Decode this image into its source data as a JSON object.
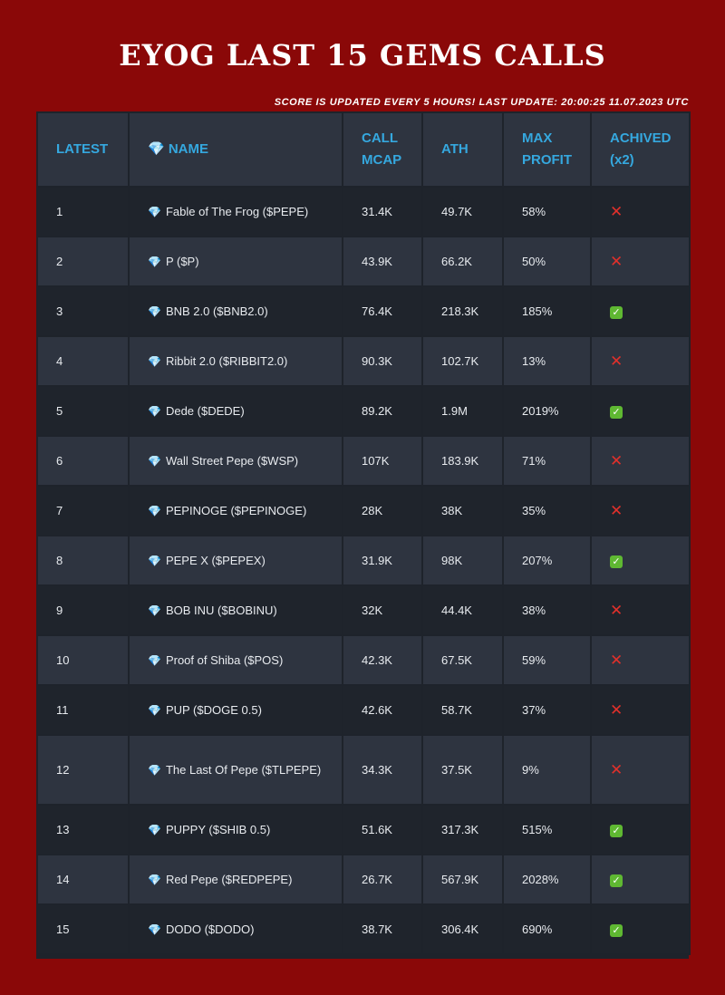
{
  "page": {
    "title": "EYOG LAST 15 GEMS CALLS",
    "update_note": "SCORE IS UPDATED EVERY 5 HOURS! LAST UPDATE: 20:00:25 11.07.2023 UTC"
  },
  "table": {
    "headers": {
      "latest": "LATEST",
      "name": "💎 NAME",
      "call_mcap": "CALL MCAP",
      "ath": "ATH",
      "max_profit": "MAX PROFIT",
      "achived": "ACHIVED (x2)"
    },
    "rows": [
      {
        "latest": "1",
        "name": "Fable of The Frog ($PEPE)",
        "call_mcap": "31.4K",
        "ath": "49.7K",
        "max_profit": "58%",
        "achived": "❌"
      },
      {
        "latest": "2",
        "name": "P ($P)",
        "call_mcap": "43.9K",
        "ath": "66.2K",
        "max_profit": "50%",
        "achived": "❌"
      },
      {
        "latest": "3",
        "name": "BNB 2.0 ($BNB2.0)",
        "call_mcap": "76.4K",
        "ath": "218.3K",
        "max_profit": "185%",
        "achived": "✅"
      },
      {
        "latest": "4",
        "name": "Ribbit 2.0 ($RIBBIT2.0)",
        "call_mcap": "90.3K",
        "ath": "102.7K",
        "max_profit": "13%",
        "achived": "❌"
      },
      {
        "latest": "5",
        "name": "Dede ($DEDE)",
        "call_mcap": "89.2K",
        "ath": "1.9M",
        "max_profit": "2019%",
        "achived": "✅"
      },
      {
        "latest": "6",
        "name": "Wall Street Pepe ($WSP)",
        "call_mcap": "107K",
        "ath": "183.9K",
        "max_profit": "71%",
        "achived": "❌"
      },
      {
        "latest": "7",
        "name": "PEPINOGE ($PEPINOGE)",
        "call_mcap": "28K",
        "ath": "38K",
        "max_profit": "35%",
        "achived": "❌"
      },
      {
        "latest": "8",
        "name": "PEPE X ($PEPEX)",
        "call_mcap": "31.9K",
        "ath": "98K",
        "max_profit": "207%",
        "achived": "✅"
      },
      {
        "latest": "9",
        "name": "BOB INU ($BOBINU)",
        "call_mcap": "32K",
        "ath": "44.4K",
        "max_profit": "38%",
        "achived": "❌"
      },
      {
        "latest": "10",
        "name": "Proof of Shiba ($POS)",
        "call_mcap": "42.3K",
        "ath": "67.5K",
        "max_profit": "59%",
        "achived": "❌"
      },
      {
        "latest": "11",
        "name": "PUP ($DOGE 0.5)",
        "call_mcap": "42.6K",
        "ath": "58.7K",
        "max_profit": "37%",
        "achived": "❌"
      },
      {
        "latest": "12",
        "name": "The Last Of Pepe ($TLPEPE)",
        "call_mcap": "34.3K",
        "ath": "37.5K",
        "max_profit": "9%",
        "achived": "❌"
      },
      {
        "latest": "13",
        "name": "PUPPY ($SHIB 0.5)",
        "call_mcap": "51.6K",
        "ath": "317.3K",
        "max_profit": "515%",
        "achived": "✅"
      },
      {
        "latest": "14",
        "name": "Red Pepe ($REDPEPE)",
        "call_mcap": "26.7K",
        "ath": "567.9K",
        "max_profit": "2028%",
        "achived": "✅"
      },
      {
        "latest": "15",
        "name": "DODO ($DODO)",
        "call_mcap": "38.7K",
        "ath": "306.4K",
        "max_profit": "690%",
        "achived": "✅"
      }
    ]
  },
  "colors": {
    "background": "#8a0808",
    "header_text": "#35a8df",
    "row_dark": "#1f242c",
    "row_light": "#2e3440",
    "fail_mark": "#e0302b",
    "success_mark": "#5fb832"
  },
  "icons": {
    "gem": "gem-icon",
    "fail": "cross-mark-icon",
    "success": "check-mark-icon"
  }
}
